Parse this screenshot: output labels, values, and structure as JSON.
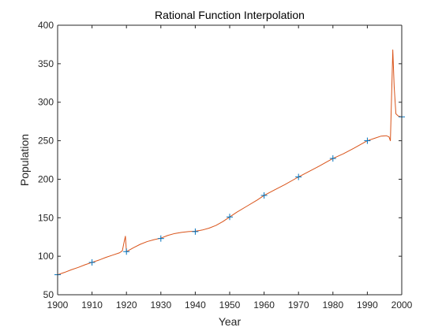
{
  "chart_data": {
    "type": "line",
    "title": "Rational Function Interpolation",
    "xlabel": "Year",
    "ylabel": "Population",
    "xlim": [
      1900,
      2000
    ],
    "ylim": [
      50,
      400
    ],
    "x_ticks": [
      1900,
      1910,
      1920,
      1930,
      1940,
      1950,
      1960,
      1970,
      1980,
      1990,
      2000
    ],
    "y_ticks": [
      50,
      100,
      150,
      200,
      250,
      300,
      350,
      400
    ],
    "grid": false,
    "series": [
      {
        "style": "markers",
        "marker": "+",
        "color": "#0072bd",
        "x": [
          1900,
          1910,
          1920,
          1930,
          1940,
          1950,
          1960,
          1970,
          1980,
          1990,
          2000
        ],
        "y": [
          76,
          92,
          106,
          123,
          132,
          151,
          179,
          203,
          227,
          250,
          281
        ]
      },
      {
        "style": "line",
        "color": "#d95319",
        "x": [
          1900,
          1902,
          1904,
          1906,
          1908,
          1910,
          1912,
          1914,
          1916,
          1918,
          1918.8,
          1919.3,
          1919.7,
          1920,
          1922,
          1924,
          1926,
          1928,
          1930,
          1932,
          1934,
          1936,
          1938,
          1940,
          1942,
          1944,
          1946,
          1948,
          1950,
          1952,
          1955,
          1958,
          1960,
          1963,
          1966,
          1970,
          1973,
          1976,
          1980,
          1983,
          1986,
          1990,
          1992,
          1994,
          1995.5,
          1996.3,
          1996.7,
          1997,
          1997.4,
          1997.8,
          1998.3,
          1999,
          2000
        ],
        "y": [
          76,
          79,
          82.5,
          85.5,
          89,
          92,
          95,
          98.5,
          101.5,
          104.5,
          107,
          118,
          126,
          106,
          111,
          115.5,
          119,
          121.5,
          123.5,
          127,
          129.5,
          131,
          132,
          132.5,
          134,
          136.5,
          140,
          145,
          151,
          157,
          165,
          173,
          179,
          186,
          193,
          203,
          210,
          217,
          227,
          233,
          240,
          250,
          253,
          256,
          256.5,
          255,
          250,
          300,
          368,
          320,
          285,
          282,
          281
        ]
      }
    ]
  }
}
